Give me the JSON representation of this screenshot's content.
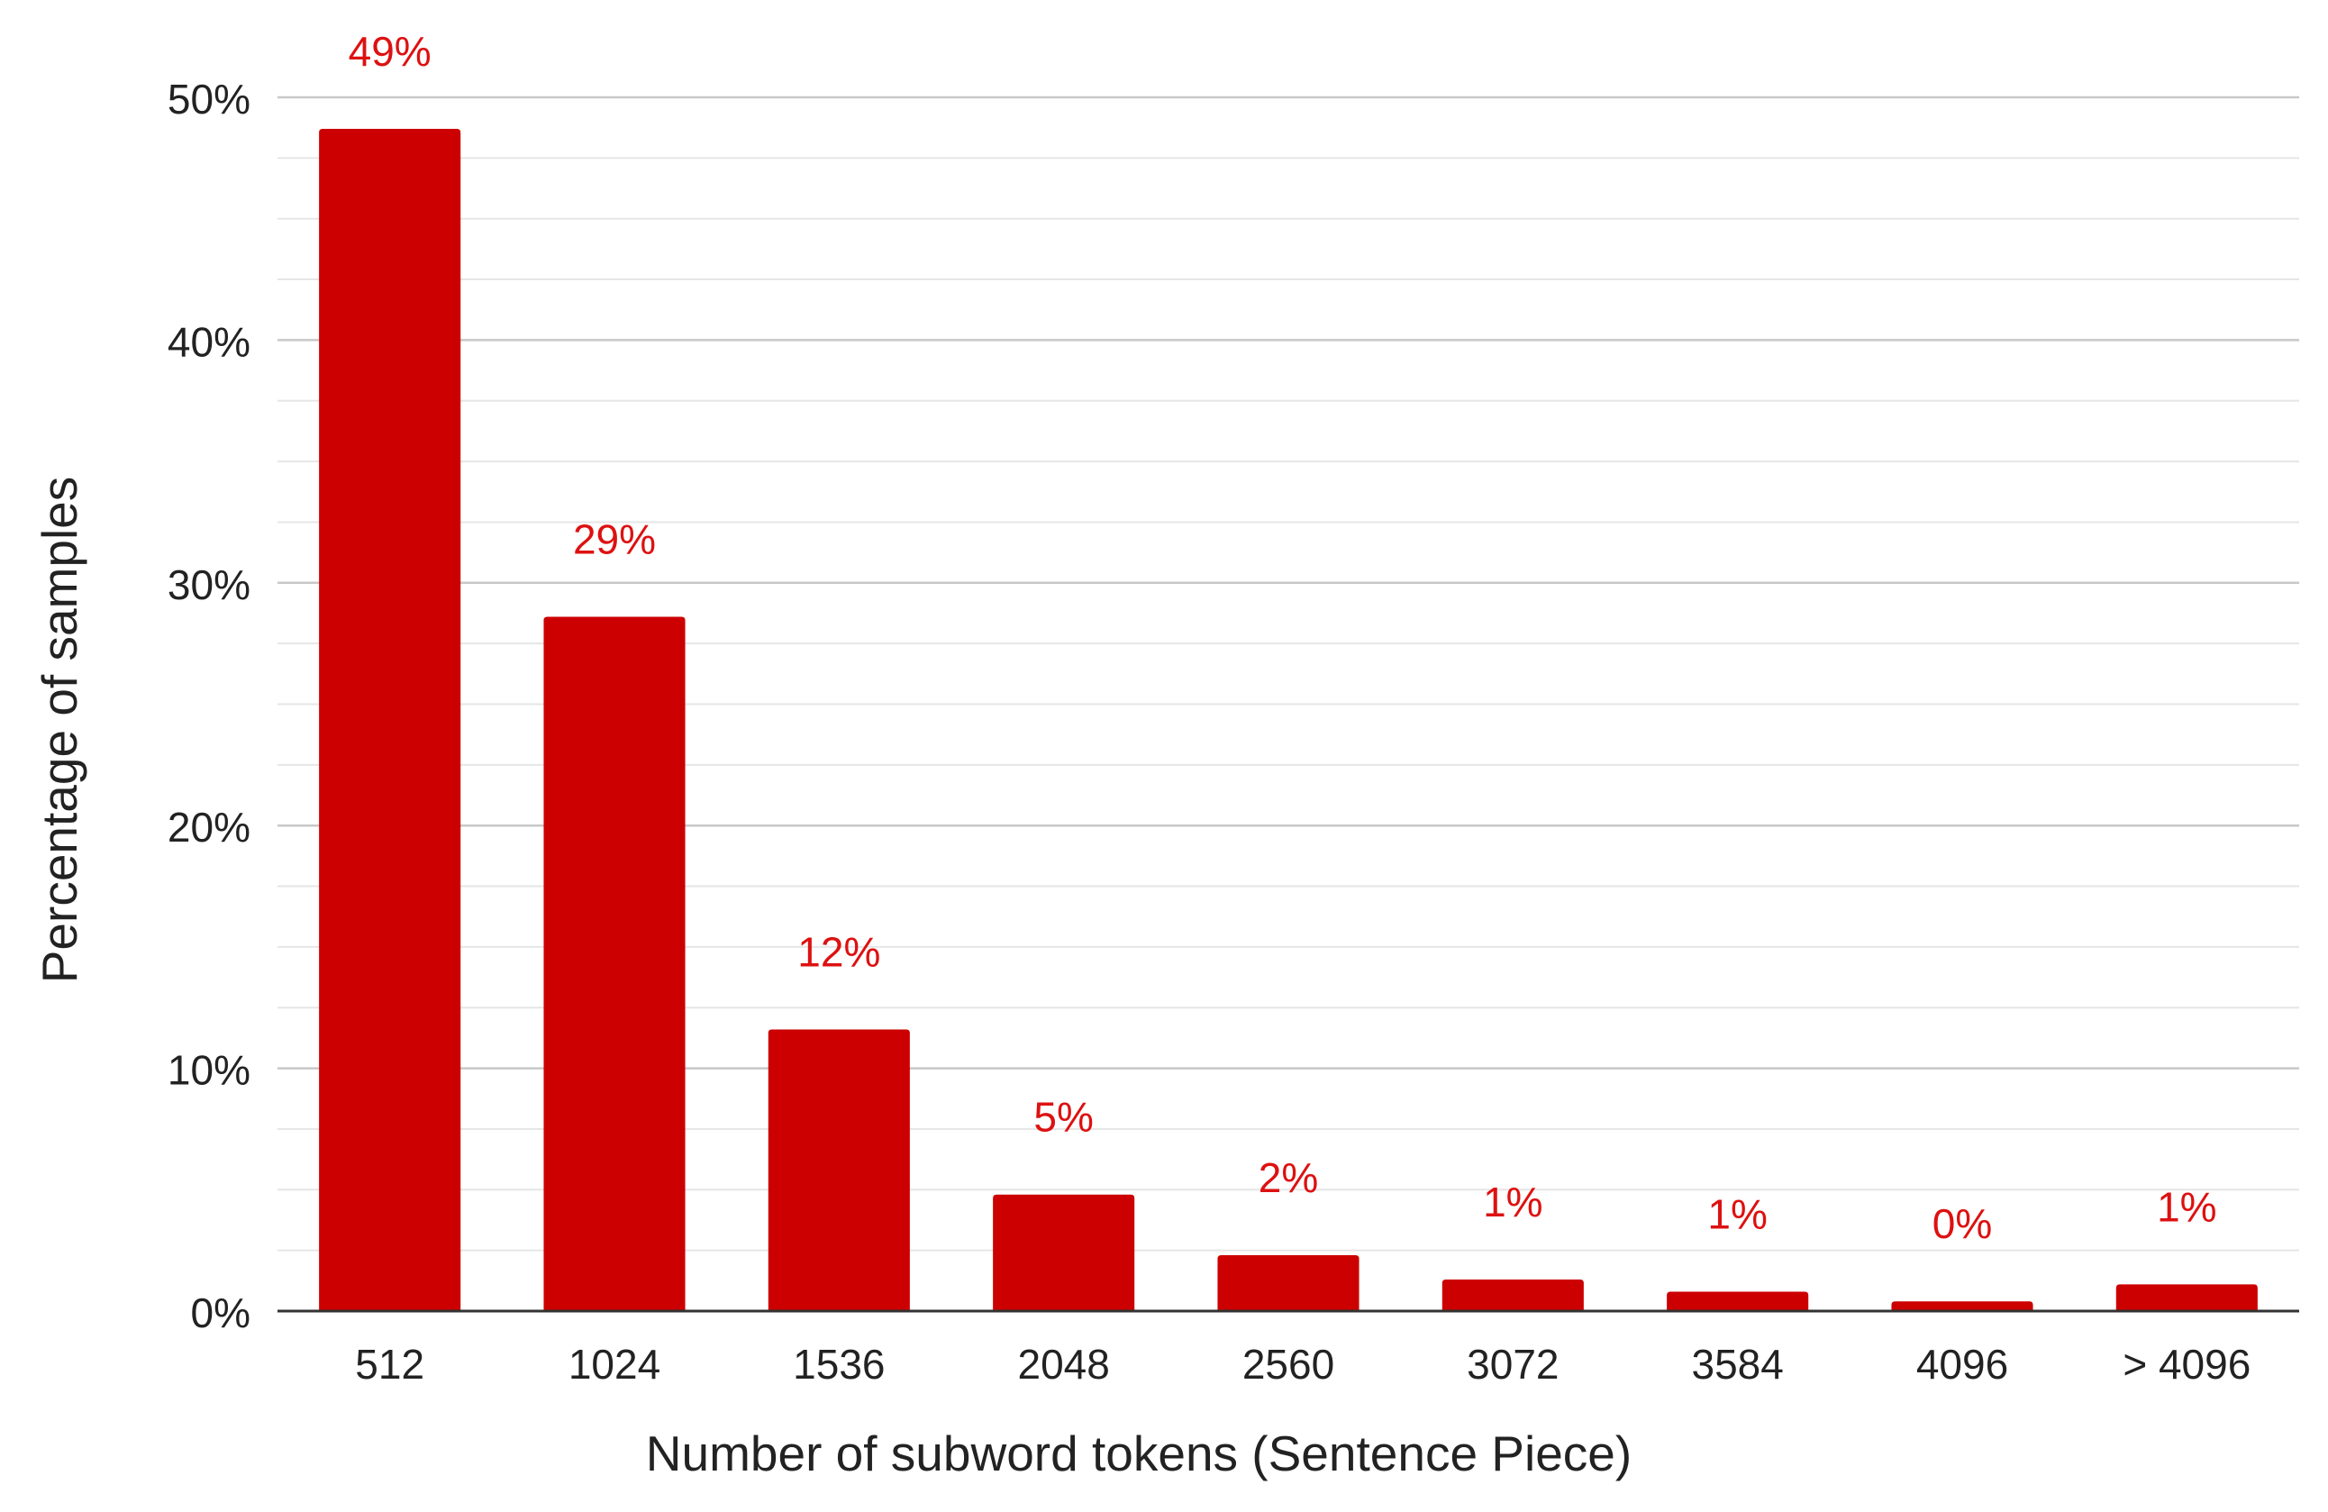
{
  "chart_data": {
    "type": "bar",
    "title": "",
    "xlabel": "Number of subword tokens (Sentence Piece)",
    "ylabel": "Percentage of samples",
    "categories": [
      "512",
      "1024",
      "1536",
      "2048",
      "2560",
      "3072",
      "3584",
      "4096",
      "> 4096"
    ],
    "values": [
      48.7,
      28.6,
      11.6,
      4.8,
      2.3,
      1.3,
      0.8,
      0.4,
      1.1
    ],
    "data_labels": [
      "49%",
      "29%",
      "12%",
      "5%",
      "2%",
      "1%",
      "1%",
      "0%",
      "1%"
    ],
    "ylim": [
      0,
      50
    ],
    "y_ticks": [
      0,
      10,
      20,
      30,
      40,
      50
    ],
    "y_tick_labels": [
      "0%",
      "10%",
      "20%",
      "30%",
      "40%",
      "50%"
    ],
    "grid": true,
    "bar_color": "#cc0000",
    "label_color": "#dd1111"
  }
}
